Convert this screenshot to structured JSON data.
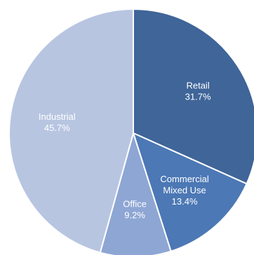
{
  "chart_data": {
    "type": "pie",
    "title": "",
    "slices": [
      {
        "label_lines": [
          "Retail"
        ],
        "value_label": "31.7%",
        "value": 31.7,
        "color": "#3f6599"
      },
      {
        "label_lines": [
          "Commercial",
          "Mixed Use"
        ],
        "value_label": "13.4%",
        "value": 13.4,
        "color": "#4c78b5"
      },
      {
        "label_lines": [
          "Office"
        ],
        "value_label": "9.2%",
        "value": 9.2,
        "color": "#8ea6d4"
      },
      {
        "label_lines": [
          "Industrial"
        ],
        "value_label": "45.7%",
        "value": 45.7,
        "color": "#b7c5e1"
      }
    ],
    "legend": "none"
  }
}
